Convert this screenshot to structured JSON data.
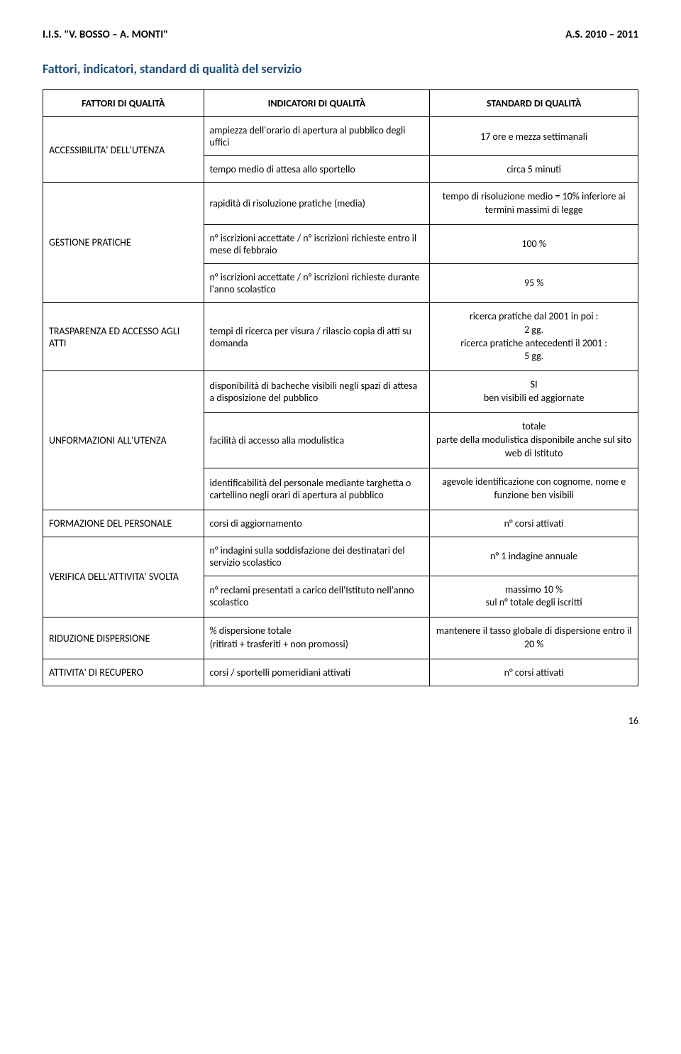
{
  "header": {
    "left": "I.I.S. \"V. BOSSO – A. MONTI\"",
    "right": "A.S. 2010 – 2011"
  },
  "section_title": "Fattori, indicatori, standard di qualità del servizio",
  "colors": {
    "section_title": "#1f4e79",
    "text": "#000000",
    "border": "#000000",
    "background": "#ffffff"
  },
  "fonts": {
    "body_family": "Calibri, Arial, sans-serif",
    "header_size_pt": 11,
    "title_size_pt": 13,
    "cell_size_pt": 10
  },
  "table": {
    "headers": [
      "FATTORI DI QUALITÀ",
      "INDICATORI DI QUALITÀ",
      "STANDARD DI QUALITÀ"
    ],
    "column_widths_pct": [
      27,
      38,
      35
    ],
    "rows": [
      {
        "factor": "ACCESSIBILITA' DELL'UTENZA",
        "factor_rowspan": 2,
        "indicator": "ampiezza dell'orario di apertura al pubblico degli uffici",
        "standard": "17 ore e mezza settimanali",
        "standard_align": "center"
      },
      {
        "indicator": "tempo medio di attesa allo sportello",
        "standard": "circa 5 minuti",
        "standard_align": "center"
      },
      {
        "factor": "GESTIONE PRATICHE",
        "factor_rowspan": 3,
        "indicator": "rapidità di risoluzione pratiche (media)",
        "standard": "tempo di risoluzione medio = 10% inferiore ai termini massimi di legge",
        "standard_align": "center"
      },
      {
        "indicator": "n° iscrizioni accettate / n° iscrizioni richieste entro il mese di febbraio",
        "standard": "100 %",
        "standard_align": "center"
      },
      {
        "indicator": "n° iscrizioni accettate / n° iscrizioni richieste durante l'anno scolastico",
        "standard": "95 %",
        "standard_align": "center"
      },
      {
        "factor": "TRASPARENZA ED ACCESSO AGLI ATTI",
        "factor_rowspan": 1,
        "indicator": "tempi di ricerca per visura / rilascio copia di atti su domanda",
        "standard_lines": [
          "ricerca pratiche dal 2001 in poi :",
          "2 gg.",
          "ricerca pratiche antecedenti il 2001 :",
          "5 gg."
        ],
        "standard_align": "center"
      },
      {
        "factor": "UNFORMAZIONI ALL'UTENZA",
        "factor_rowspan": 3,
        "indicator": "disponibilità di bacheche visibili negli spazi di attesa a disposizione del pubblico",
        "standard_lines": [
          "SI",
          "ben visibili ed aggiornate"
        ],
        "standard_align": "center"
      },
      {
        "indicator": "facilità di accesso alla modulistica",
        "standard_lines": [
          "totale",
          "parte della modulistica disponibile anche sul sito web di Istituto"
        ],
        "standard_align": "center"
      },
      {
        "indicator": "identificabilità del personale mediante targhetta o cartellino negli orari di apertura al pubblico",
        "standard": "agevole identificazione con cognome, nome e funzione ben visibili",
        "standard_align": "center"
      },
      {
        "factor": "FORMAZIONE DEL PERSONALE",
        "factor_rowspan": 1,
        "indicator": "corsi di aggiornamento",
        "standard": "n° corsi attivati",
        "standard_align": "center"
      },
      {
        "factor": "VERIFICA DELL'ATTIVITA' SVOLTA",
        "factor_rowspan": 2,
        "indicator": "n° indagini sulla soddisfazione dei destinatari del servizio scolastico",
        "standard": "n° 1 indagine annuale",
        "standard_align": "center"
      },
      {
        "indicator": "n° reclami presentati a carico dell'Istituto nell'anno scolastico",
        "standard_lines": [
          "massimo 10 %",
          "sul n° totale degli iscritti"
        ],
        "standard_align": "center"
      },
      {
        "factor": "RIDUZIONE DISPERSIONE",
        "factor_rowspan": 1,
        "indicator_lines": [
          "% dispersione totale",
          "(ritirati + trasferiti + non promossi)"
        ],
        "standard": "mantenere il tasso globale di dispersione entro il 20 %",
        "standard_align": "center"
      },
      {
        "factor": "ATTIVITA' DI RECUPERO",
        "factor_rowspan": 1,
        "indicator": "corsi / sportelli pomeridiani attivati",
        "standard": "n° corsi attivati",
        "standard_align": "center"
      }
    ]
  },
  "page_number": "16"
}
